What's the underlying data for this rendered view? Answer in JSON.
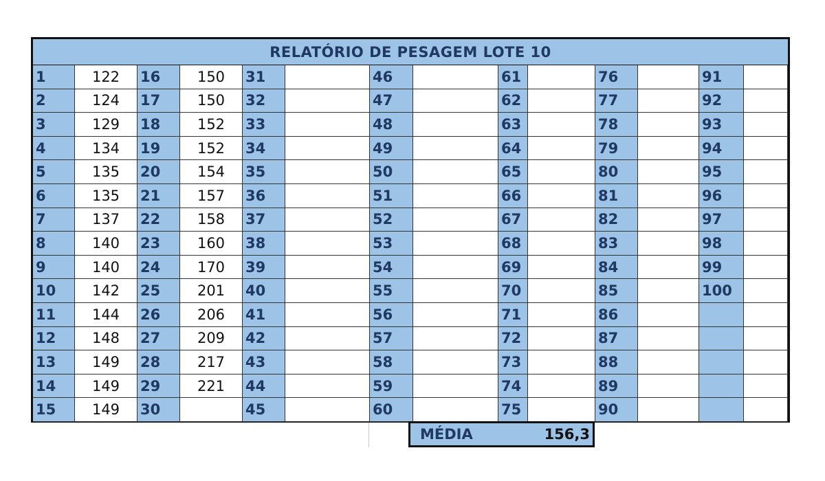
{
  "title": "RELATÓRIO DE PESAGEM LOTE 10",
  "media": {
    "label": "MÉDIA",
    "value": "156,3"
  },
  "colors": {
    "header_fill": "#9dc3e6",
    "header_text": "#1f3864",
    "border": "#111111"
  },
  "groups": [
    {
      "indices": [
        "1",
        "2",
        "3",
        "4",
        "5",
        "6",
        "7",
        "8",
        "9",
        "10",
        "11",
        "12",
        "13",
        "14",
        "15"
      ],
      "values": [
        "122",
        "124",
        "129",
        "134",
        "135",
        "135",
        "137",
        "140",
        "140",
        "142",
        "144",
        "148",
        "149",
        "149",
        "149"
      ]
    },
    {
      "indices": [
        "16",
        "17",
        "18",
        "19",
        "20",
        "21",
        "22",
        "23",
        "24",
        "25",
        "26",
        "27",
        "28",
        "29",
        "30"
      ],
      "values": [
        "150",
        "150",
        "152",
        "152",
        "154",
        "157",
        "158",
        "160",
        "170",
        "201",
        "206",
        "209",
        "217",
        "221",
        ""
      ]
    },
    {
      "indices": [
        "31",
        "32",
        "33",
        "34",
        "35",
        "36",
        "37",
        "38",
        "39",
        "40",
        "41",
        "42",
        "43",
        "44",
        "45"
      ],
      "values": [
        "",
        "",
        "",
        "",
        "",
        "",
        "",
        "",
        "",
        "",
        "",
        "",
        "",
        "",
        ""
      ]
    },
    {
      "indices": [
        "46",
        "47",
        "48",
        "49",
        "50",
        "51",
        "52",
        "53",
        "54",
        "55",
        "56",
        "57",
        "58",
        "59",
        "60"
      ],
      "values": [
        "",
        "",
        "",
        "",
        "",
        "",
        "",
        "",
        "",
        "",
        "",
        "",
        "",
        "",
        ""
      ]
    },
    {
      "indices": [
        "61",
        "62",
        "63",
        "64",
        "65",
        "66",
        "67",
        "68",
        "69",
        "70",
        "71",
        "72",
        "73",
        "74",
        "75"
      ],
      "values": [
        "",
        "",
        "",
        "",
        "",
        "",
        "",
        "",
        "",
        "",
        "",
        "",
        "",
        "",
        ""
      ]
    },
    {
      "indices": [
        "76",
        "77",
        "78",
        "79",
        "80",
        "81",
        "82",
        "83",
        "84",
        "85",
        "86",
        "87",
        "88",
        "89",
        "90"
      ],
      "values": [
        "",
        "",
        "",
        "",
        "",
        "",
        "",
        "",
        "",
        "",
        "",
        "",
        "",
        "",
        ""
      ]
    },
    {
      "indices": [
        "91",
        "92",
        "93",
        "94",
        "95",
        "96",
        "97",
        "98",
        "99",
        "100",
        "",
        "",
        "",
        "",
        ""
      ],
      "values": [
        "",
        "",
        "",
        "",
        "",
        "",
        "",
        "",
        "",
        "",
        "",
        "",
        "",
        "",
        ""
      ]
    }
  ]
}
